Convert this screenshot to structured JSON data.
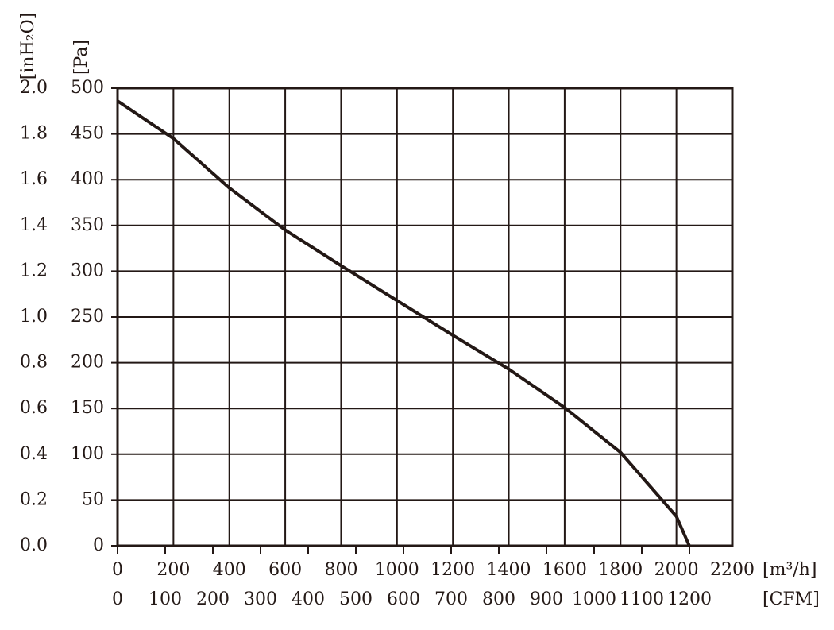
{
  "chart_data": {
    "type": "line",
    "x_unit": "[m³/h]",
    "x2_unit": "[CFM]",
    "y_unit": "[Pa]",
    "y2_unit": "[inH₂O]",
    "x": [
      0,
      200,
      400,
      600,
      800,
      1000,
      1200,
      1400,
      1600,
      1800,
      2000,
      2046
    ],
    "series": [
      {
        "color": "#231815",
        "values": [
          486,
          445,
          391,
          345,
          306,
          268,
          230,
          193,
          151,
          102,
          32,
          0
        ]
      }
    ],
    "xlim": [
      0,
      2200
    ],
    "xticks": [
      0,
      200,
      400,
      600,
      800,
      1000,
      1200,
      1400,
      1600,
      1800,
      2000,
      2200
    ],
    "x2lim": [
      0,
      1290
    ],
    "x2ticks": [
      0,
      100,
      200,
      300,
      400,
      500,
      600,
      700,
      800,
      900,
      1000,
      1100,
      1200
    ],
    "ylim": [
      0,
      500
    ],
    "yticks": [
      0,
      50,
      100,
      150,
      200,
      250,
      300,
      350,
      400,
      450,
      500
    ],
    "y2lim": [
      0,
      2.0
    ],
    "y2ticks": [
      {
        "value": 0,
        "label": "0.0"
      },
      0.2,
      0.4,
      0.6,
      0.8,
      {
        "value": 1,
        "label": "1.0"
      },
      1.2,
      1.4,
      1.6,
      1.8,
      {
        "value": 2,
        "label": "2.0"
      }
    ],
    "grid": true
  }
}
